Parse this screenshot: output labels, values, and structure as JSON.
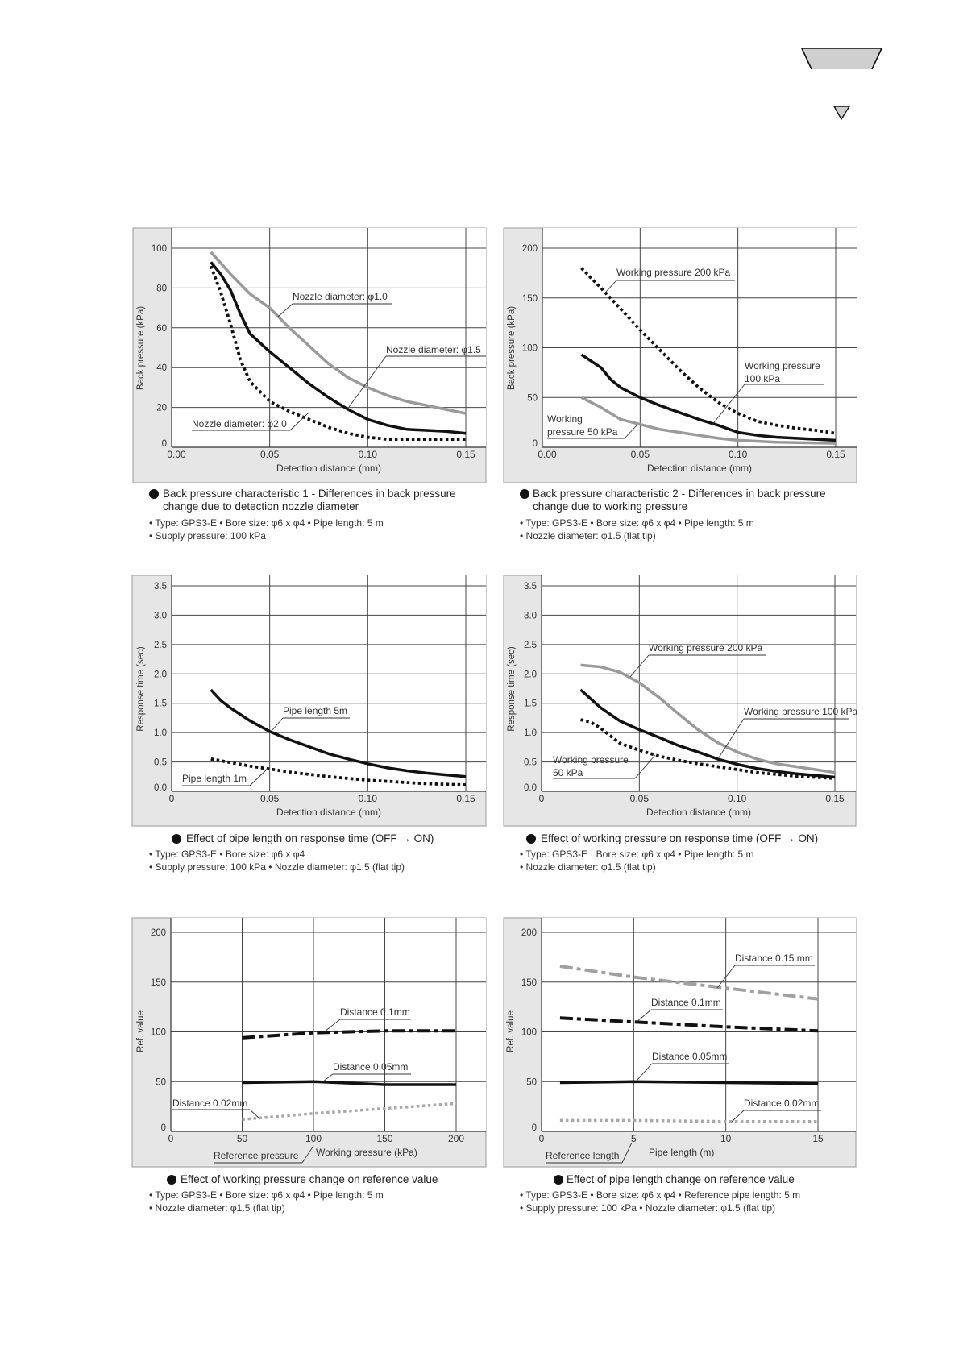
{
  "chart_data": [
    {
      "type": "line",
      "title": "Back pressure characteristic 1 - Differences in back pressure change due to detection nozzle diameter",
      "title_lines": [
        "Back pressure characteristic 1 - Differences in back pressure",
        "change due to detection nozzle diameter"
      ],
      "specs": [
        "• Type: GPS3-E    • Bore size: φ6 x φ4    • Pipe length: 5 m",
        "• Supply pressure: 100 kPa"
      ],
      "xlabel": "Detection distance (mm)",
      "ylabel": "Back pressure (kPa)",
      "xlim": [
        0,
        0.15
      ],
      "ylim": [
        0,
        100
      ],
      "xticks": [
        0,
        0.05,
        0.1,
        0.15
      ],
      "xtick_labels": [
        "0.00",
        "0.05",
        "0.10",
        "0.15"
      ],
      "yticks": [
        0,
        20,
        40,
        60,
        80,
        100
      ],
      "ytick_labels": [
        "0",
        "20",
        "40",
        "60",
        "80",
        "100"
      ],
      "grid": true,
      "series": [
        {
          "name": "Nozzle diameter: φ1.0",
          "style": "gray",
          "x": [
            0.02,
            0.03,
            0.04,
            0.05,
            0.06,
            0.07,
            0.08,
            0.09,
            0.1,
            0.11,
            0.12,
            0.13,
            0.14,
            0.15
          ],
          "y": [
            98,
            87,
            77,
            70,
            60,
            51,
            42,
            35,
            30,
            26,
            23,
            21,
            19,
            17
          ]
        },
        {
          "name": "Nozzle diameter: φ1.5",
          "style": "black",
          "x": [
            0.02,
            0.025,
            0.03,
            0.035,
            0.04,
            0.05,
            0.06,
            0.07,
            0.08,
            0.09,
            0.1,
            0.11,
            0.12,
            0.13,
            0.14,
            0.15
          ],
          "y": [
            93,
            87,
            79,
            67,
            57,
            48,
            40,
            32,
            25,
            19,
            14,
            11,
            9,
            8.5,
            8,
            7
          ]
        },
        {
          "name": "Nozzle diameter: φ2.0",
          "style": "dotted",
          "x": [
            0.02,
            0.025,
            0.03,
            0.035,
            0.04,
            0.05,
            0.06,
            0.07,
            0.08,
            0.09,
            0.1,
            0.11,
            0.12,
            0.15
          ],
          "y": [
            91,
            78,
            62,
            44,
            33,
            23,
            18,
            14,
            10,
            7,
            5,
            4,
            4,
            4
          ]
        }
      ],
      "annotations": [
        [
          "Nozzle diameter: φ1.0"
        ],
        [
          "Nozzle diameter: φ1.5"
        ],
        [
          "Nozzle diameter: φ2.0"
        ]
      ]
    },
    {
      "type": "line",
      "title": "Back pressure characteristic 2 - Differences in back pressure change due to working pressure",
      "title_lines": [
        "Back pressure characteristic 2 - Differences in back pressure",
        "change due to working pressure"
      ],
      "specs": [
        "• Type: GPS3-E    • Bore size: φ6 x φ4    • Pipe length: 5 m",
        "• Nozzle diameter: φ1.5 (flat tip)"
      ],
      "xlabel": "Detection distance (mm)",
      "ylabel": "Back pressure (kPa)",
      "xlim": [
        0,
        0.15
      ],
      "ylim": [
        0,
        200
      ],
      "xticks": [
        0,
        0.05,
        0.1,
        0.15
      ],
      "xtick_labels": [
        "0.00",
        "0.05",
        "0.10",
        "0.15"
      ],
      "yticks": [
        0,
        50,
        100,
        150,
        200
      ],
      "ytick_labels": [
        "0",
        "50",
        "100",
        "150",
        "200"
      ],
      "grid": true,
      "series": [
        {
          "name": "Working pressure 200 kPa",
          "style": "dotted",
          "x": [
            0.02,
            0.03,
            0.04,
            0.05,
            0.06,
            0.07,
            0.08,
            0.09,
            0.1,
            0.11,
            0.12,
            0.13,
            0.14,
            0.15
          ],
          "y": [
            180,
            160,
            139,
            118,
            98,
            78,
            60,
            45,
            34,
            26,
            22,
            19,
            17,
            14
          ]
        },
        {
          "name": "Working pressure 100 kPa",
          "style": "black",
          "x": [
            0.02,
            0.03,
            0.035,
            0.04,
            0.05,
            0.06,
            0.07,
            0.08,
            0.09,
            0.1,
            0.11,
            0.12,
            0.13,
            0.15
          ],
          "y": [
            93,
            80,
            68,
            60,
            50,
            42,
            35,
            28,
            22,
            15,
            12,
            10,
            9,
            7
          ]
        },
        {
          "name": "Working pressure 50 kPa",
          "style": "gray",
          "x": [
            0.02,
            0.03,
            0.035,
            0.04,
            0.05,
            0.06,
            0.07,
            0.08,
            0.09,
            0.1,
            0.12,
            0.15
          ],
          "y": [
            50,
            40,
            34,
            28,
            23,
            18,
            15,
            12,
            9,
            7,
            5,
            4
          ]
        }
      ],
      "annotations": [
        [
          "Working pressure 200 kPa"
        ],
        [
          "Working pressure",
          "100 kPa"
        ],
        [
          "Working",
          "pressure 50 kPa"
        ]
      ]
    },
    {
      "type": "line",
      "title": "Effect of pipe length on response time (OFF → ON)",
      "title_lines": [
        "Effect of pipe length on response time (OFF → ON)"
      ],
      "specs": [
        "• Type: GPS3-E    • Bore size: φ6 x φ4",
        "• Supply pressure: 100 kPa    • Nozzle diameter: φ1.5 (flat tip)"
      ],
      "xlabel": "Detection distance (mm)",
      "ylabel": "Response time (sec)",
      "xlim": [
        0,
        0.15
      ],
      "ylim": [
        0,
        3.5
      ],
      "xticks": [
        0,
        0.05,
        0.1,
        0.15
      ],
      "xtick_labels": [
        "0",
        "0.05",
        "0.10",
        "0.15"
      ],
      "yticks": [
        0,
        0.5,
        1.0,
        1.5,
        2.0,
        2.5,
        3.0,
        3.5
      ],
      "ytick_labels": [
        "0.0",
        "0.5",
        "1.0",
        "1.5",
        "2.0",
        "2.5",
        "3.0",
        "3.5"
      ],
      "grid": true,
      "series": [
        {
          "name": "Pipe length 5m",
          "style": "black",
          "x": [
            0.02,
            0.025,
            0.03,
            0.04,
            0.05,
            0.06,
            0.07,
            0.08,
            0.09,
            0.1,
            0.11,
            0.12,
            0.13,
            0.14,
            0.15
          ],
          "y": [
            1.73,
            1.55,
            1.42,
            1.2,
            1.02,
            0.88,
            0.76,
            0.64,
            0.55,
            0.47,
            0.4,
            0.35,
            0.31,
            0.28,
            0.25
          ]
        },
        {
          "name": "Pipe length 1m",
          "style": "dotted",
          "x": [
            0.02,
            0.03,
            0.04,
            0.05,
            0.06,
            0.07,
            0.08,
            0.09,
            0.1,
            0.11,
            0.12,
            0.13,
            0.15
          ],
          "y": [
            0.55,
            0.49,
            0.43,
            0.38,
            0.33,
            0.29,
            0.25,
            0.22,
            0.19,
            0.17,
            0.15,
            0.13,
            0.11
          ]
        }
      ],
      "annotations": [
        [
          "Pipe length 5m"
        ],
        [
          "Pipe length 1m"
        ]
      ]
    },
    {
      "type": "line",
      "title": "Effect of working pressure on response time (OFF → ON)",
      "title_lines": [
        "Effect of working pressure on response time (OFF → ON)"
      ],
      "specs": [
        "• Type: GPS3-E  · Bore size: φ6 x φ4    • Pipe length: 5 m",
        "• Nozzle diameter: φ1.5 (flat tip)"
      ],
      "xlabel": "Detection distance (mm)",
      "ylabel": "Response time (sec)",
      "xlim": [
        0,
        0.15
      ],
      "ylim": [
        0,
        3.5
      ],
      "xticks": [
        0,
        0.05,
        0.1,
        0.15
      ],
      "xtick_labels": [
        "0",
        "0.05",
        "0.10",
        "0.15"
      ],
      "yticks": [
        0,
        0.5,
        1.0,
        1.5,
        2.0,
        2.5,
        3.0,
        3.5
      ],
      "ytick_labels": [
        "0.0",
        "0.5",
        "1.0",
        "1.5",
        "2.0",
        "2.5",
        "3.0",
        "3.5"
      ],
      "grid": true,
      "series": [
        {
          "name": "Working pressure 200 kPa",
          "style": "gray",
          "x": [
            0.02,
            0.03,
            0.04,
            0.05,
            0.06,
            0.07,
            0.08,
            0.09,
            0.1,
            0.11,
            0.12,
            0.13,
            0.14,
            0.15
          ],
          "y": [
            2.15,
            2.12,
            2.03,
            1.85,
            1.6,
            1.32,
            1.05,
            0.83,
            0.67,
            0.55,
            0.47,
            0.42,
            0.37,
            0.32
          ]
        },
        {
          "name": "Working pressure 100 kPa",
          "style": "black",
          "x": [
            0.02,
            0.03,
            0.04,
            0.05,
            0.06,
            0.07,
            0.08,
            0.09,
            0.1,
            0.11,
            0.12,
            0.13,
            0.15
          ],
          "y": [
            1.73,
            1.43,
            1.2,
            1.05,
            0.92,
            0.78,
            0.67,
            0.55,
            0.46,
            0.39,
            0.34,
            0.3,
            0.24
          ]
        },
        {
          "name": "Working pressure 50 kPa",
          "style": "dotted",
          "x": [
            0.02,
            0.025,
            0.03,
            0.035,
            0.04,
            0.05,
            0.06,
            0.07,
            0.08,
            0.09,
            0.1,
            0.11,
            0.12,
            0.13,
            0.15
          ],
          "y": [
            1.22,
            1.18,
            1.08,
            0.95,
            0.82,
            0.7,
            0.6,
            0.53,
            0.47,
            0.42,
            0.37,
            0.32,
            0.29,
            0.26,
            0.22
          ]
        }
      ],
      "annotations": [
        [
          "Working pressure 200 kPa"
        ],
        [
          "Working pressure 100 kPa"
        ],
        [
          "Working pressure",
          "50 kPa"
        ]
      ]
    },
    {
      "type": "line",
      "title": "Effect of working pressure change on reference value",
      "title_lines": [
        "Effect of working pressure change on reference value"
      ],
      "specs": [
        "• Type: GPS3-E    • Bore size: φ6 x φ4    • Pipe length: 5 m",
        "• Nozzle diameter: φ1.5 (flat tip)"
      ],
      "xlabel": "Working pressure (kPa)",
      "ylabel": "Ref. value",
      "xlim": [
        0,
        200
      ],
      "ylim": [
        0,
        200
      ],
      "xticks": [
        0,
        50,
        100,
        150,
        200
      ],
      "xtick_labels": [
        "0",
        "50",
        "100",
        "150",
        "200"
      ],
      "yticks": [
        0,
        50,
        100,
        150,
        200
      ],
      "ytick_labels": [
        "0",
        "50",
        "100",
        "150",
        "200"
      ],
      "grid": true,
      "series": [
        {
          "name": "Distance 0.1mm",
          "style": "dashdot",
          "x": [
            50,
            100,
            150,
            200
          ],
          "y": [
            94,
            99,
            101,
            101
          ]
        },
        {
          "name": "Distance 0.05mm",
          "style": "black",
          "x": [
            50,
            100,
            150,
            200
          ],
          "y": [
            49,
            50,
            47,
            47
          ]
        },
        {
          "name": "Distance 0.02mm",
          "style": "graydotted",
          "x": [
            50,
            100,
            150,
            200
          ],
          "y": [
            12,
            18,
            23,
            28
          ]
        }
      ],
      "annotations": [
        [
          "Distance 0.1mm"
        ],
        [
          "Distance 0.05mm"
        ],
        [
          "Distance 0.02mm"
        ],
        [
          "Reference pressure"
        ]
      ]
    },
    {
      "type": "line",
      "title": "Effect of pipe length change on reference value",
      "title_lines": [
        "Effect of pipe length change on reference value"
      ],
      "specs": [
        "• Type: GPS3-E    • Bore size: φ6 x φ4    • Reference pipe length: 5 m",
        "• Supply pressure: 100 kPa    • Nozzle diameter: φ1.5 (flat tip)"
      ],
      "xlabel": "Pipe length (m)",
      "ylabel": "Ref. value",
      "xlim": [
        0,
        15
      ],
      "ylim": [
        0,
        200
      ],
      "xticks": [
        0,
        5,
        10,
        15
      ],
      "xtick_labels": [
        "0",
        "5",
        "10",
        "15"
      ],
      "yticks": [
        0,
        50,
        100,
        150,
        200
      ],
      "ytick_labels": [
        "0",
        "50",
        "100",
        "150",
        "200"
      ],
      "grid": true,
      "series": [
        {
          "name": "Distance 0.15 mm",
          "style": "graydashdot",
          "x": [
            1,
            5,
            10,
            15
          ],
          "y": [
            166,
            155,
            144,
            133
          ]
        },
        {
          "name": "Distance 0.1mm",
          "style": "dashdot",
          "x": [
            1,
            5,
            10,
            15
          ],
          "y": [
            114,
            110,
            105,
            101
          ]
        },
        {
          "name": "Distance 0.05mm",
          "style": "black",
          "x": [
            1,
            5,
            10,
            15
          ],
          "y": [
            49,
            50,
            49,
            48
          ]
        },
        {
          "name": "Distance 0.02mm",
          "style": "graydotted",
          "x": [
            1,
            5,
            10,
            15
          ],
          "y": [
            11,
            11,
            10,
            10
          ]
        }
      ],
      "annotations": [
        [
          "Distance 0.15 mm"
        ],
        [
          "Distance 0.1mm"
        ],
        [
          "Distance 0.05mm"
        ],
        [
          "Distance 0.02mm"
        ],
        [
          "Reference length"
        ]
      ]
    }
  ]
}
